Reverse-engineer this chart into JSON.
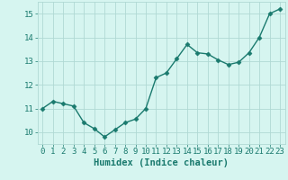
{
  "xlabel": "Humidex (Indice chaleur)",
  "x": [
    0,
    1,
    2,
    3,
    4,
    5,
    6,
    7,
    8,
    9,
    10,
    11,
    12,
    13,
    14,
    15,
    16,
    17,
    18,
    19,
    20,
    21,
    22,
    23
  ],
  "y": [
    11.0,
    11.3,
    11.2,
    11.1,
    10.4,
    10.15,
    9.8,
    10.1,
    10.4,
    10.55,
    11.0,
    12.3,
    12.5,
    13.1,
    13.7,
    13.35,
    13.3,
    13.05,
    12.85,
    12.95,
    13.35,
    14.0,
    15.0,
    15.2
  ],
  "line_color": "#1a7a6e",
  "marker": "D",
  "marker_size": 2.5,
  "bg_color": "#d6f5f0",
  "grid_color": "#b0d9d4",
  "tick_color": "#1a7a6e",
  "label_color": "#1a7a6e",
  "ylim": [
    9.5,
    15.5
  ],
  "yticks": [
    10,
    11,
    12,
    13,
    14,
    15
  ],
  "xticks": [
    0,
    1,
    2,
    3,
    4,
    5,
    6,
    7,
    8,
    9,
    10,
    11,
    12,
    13,
    14,
    15,
    16,
    17,
    18,
    19,
    20,
    21,
    22,
    23
  ],
  "xlabel_fontsize": 7.5,
  "tick_fontsize": 6.5,
  "line_width": 1.0,
  "marker_color": "#1a7a6e"
}
